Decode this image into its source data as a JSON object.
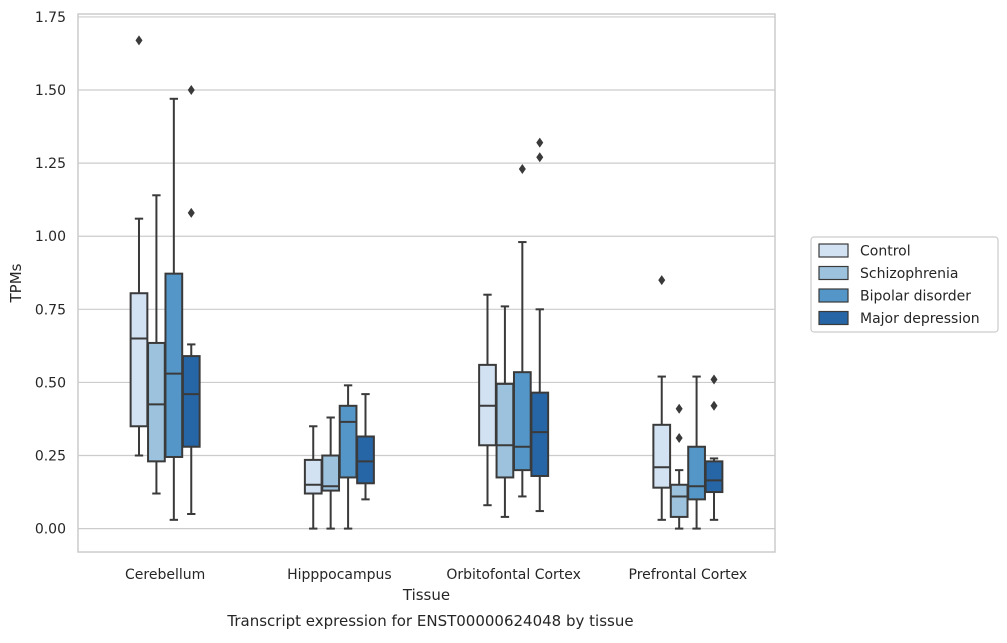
{
  "chart_data": {
    "type": "box",
    "caption": "Transcript expression for ENST00000624048 by tissue",
    "xlabel": "Tissue",
    "ylabel": "TPMs",
    "ylim": [
      -0.08,
      1.76
    ],
    "yticks": [
      "0.00",
      "0.25",
      "0.50",
      "0.75",
      "1.00",
      "1.25",
      "1.50",
      "1.75"
    ],
    "grid": "horizontal",
    "legend_position": "right",
    "categories": [
      "Cerebellum",
      "Hipppocampus",
      "Orbitofontal Cortex",
      "Prefrontal Cortex"
    ],
    "series": [
      {
        "name": "Control",
        "color": "#d2e2f2",
        "boxes": [
          {
            "whislo": 0.25,
            "q1": 0.35,
            "med": 0.65,
            "q3": 0.805,
            "whishi": 1.06,
            "fliers": [
              1.67
            ]
          },
          {
            "whislo": 0.0,
            "q1": 0.12,
            "med": 0.15,
            "q3": 0.235,
            "whishi": 0.35,
            "fliers": []
          },
          {
            "whislo": 0.08,
            "q1": 0.285,
            "med": 0.42,
            "q3": 0.56,
            "whishi": 0.8,
            "fliers": []
          },
          {
            "whislo": 0.03,
            "q1": 0.14,
            "med": 0.21,
            "q3": 0.355,
            "whishi": 0.52,
            "fliers": [
              0.85
            ]
          }
        ]
      },
      {
        "name": "Schizophrenia",
        "color": "#9cc2dd",
        "boxes": [
          {
            "whislo": 0.12,
            "q1": 0.23,
            "med": 0.425,
            "q3": 0.635,
            "whishi": 1.14,
            "fliers": []
          },
          {
            "whislo": 0.0,
            "q1": 0.13,
            "med": 0.145,
            "q3": 0.25,
            "whishi": 0.38,
            "fliers": []
          },
          {
            "whislo": 0.04,
            "q1": 0.175,
            "med": 0.285,
            "q3": 0.495,
            "whishi": 0.76,
            "fliers": []
          },
          {
            "whislo": 0.0,
            "q1": 0.04,
            "med": 0.11,
            "q3": 0.15,
            "whishi": 0.2,
            "fliers": [
              0.31,
              0.41
            ]
          }
        ]
      },
      {
        "name": "Bipolar disorder",
        "color": "#5596c8",
        "boxes": [
          {
            "whislo": 0.03,
            "q1": 0.245,
            "med": 0.53,
            "q3": 0.872,
            "whishi": 1.47,
            "fliers": []
          },
          {
            "whislo": 0.0,
            "q1": 0.175,
            "med": 0.365,
            "q3": 0.42,
            "whishi": 0.49,
            "fliers": []
          },
          {
            "whislo": 0.11,
            "q1": 0.2,
            "med": 0.28,
            "q3": 0.535,
            "whishi": 0.98,
            "fliers": [
              1.23
            ]
          },
          {
            "whislo": 0.0,
            "q1": 0.1,
            "med": 0.145,
            "q3": 0.28,
            "whishi": 0.52,
            "fliers": []
          }
        ]
      },
      {
        "name": "Major depression",
        "color": "#2766a6",
        "boxes": [
          {
            "whislo": 0.05,
            "q1": 0.28,
            "med": 0.46,
            "q3": 0.59,
            "whishi": 0.63,
            "fliers": [
              1.08,
              1.5
            ]
          },
          {
            "whislo": 0.1,
            "q1": 0.155,
            "med": 0.23,
            "q3": 0.315,
            "whishi": 0.46,
            "fliers": []
          },
          {
            "whislo": 0.06,
            "q1": 0.18,
            "med": 0.33,
            "q3": 0.465,
            "whishi": 0.75,
            "fliers": [
              1.27,
              1.32
            ]
          },
          {
            "whislo": 0.03,
            "q1": 0.125,
            "med": 0.165,
            "q3": 0.23,
            "whishi": 0.24,
            "fliers": [
              0.42,
              0.51
            ]
          }
        ]
      }
    ]
  },
  "colors": {
    "grid": "#cccccc",
    "frame": "#cccccc",
    "box_edge": "#3a3a3a",
    "text": "#262626"
  }
}
